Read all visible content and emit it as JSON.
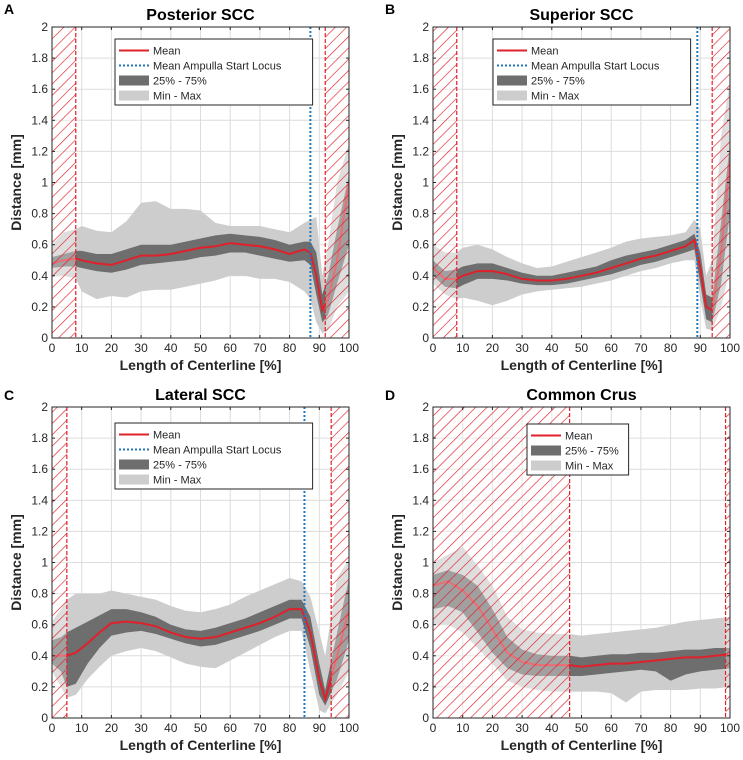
{
  "figure": {
    "x_label": "Length of Centerline [%]",
    "y_label": "Distance [mm]"
  },
  "colors": {
    "mean": "#e0202a",
    "ampulla": "#1f77c0",
    "iqr": "#6e6e6e",
    "minmax": "#cdcdcd",
    "hatch": "#e0202a",
    "grid": "#dcdcdc"
  },
  "chart_data": [
    {
      "panel": "A",
      "title": "Posterior SCC",
      "type": "line",
      "xlabel": "Length of Centerline [%]",
      "ylabel": "Distance [mm]",
      "xlim": [
        0,
        100
      ],
      "ylim": [
        0,
        2
      ],
      "xticks": [
        0,
        10,
        20,
        30,
        40,
        50,
        60,
        70,
        80,
        90,
        100
      ],
      "yticks": [
        0,
        0.2,
        0.4,
        0.6,
        0.8,
        1,
        1.2,
        1.4,
        1.6,
        1.8,
        2
      ],
      "ampulla_start": 87,
      "excluded_ranges": [
        [
          0,
          8
        ],
        [
          92,
          100
        ]
      ],
      "legend": [
        "Mean",
        "Mean Ampulla Start Locus",
        "25% - 75%",
        "Min - Max"
      ],
      "x": [
        0,
        4,
        8,
        10,
        15,
        20,
        25,
        30,
        35,
        40,
        45,
        50,
        55,
        60,
        65,
        70,
        75,
        80,
        85,
        87,
        89,
        91,
        93,
        96,
        100
      ],
      "mean": [
        0.48,
        0.5,
        0.51,
        0.5,
        0.48,
        0.47,
        0.5,
        0.53,
        0.53,
        0.54,
        0.56,
        0.58,
        0.59,
        0.61,
        0.6,
        0.59,
        0.57,
        0.54,
        0.57,
        0.55,
        0.4,
        0.18,
        0.25,
        0.5,
        1.0
      ],
      "q25": [
        0.45,
        0.46,
        0.46,
        0.45,
        0.43,
        0.42,
        0.44,
        0.47,
        0.48,
        0.49,
        0.5,
        0.52,
        0.53,
        0.55,
        0.55,
        0.53,
        0.51,
        0.49,
        0.5,
        0.47,
        0.28,
        0.1,
        0.15,
        0.35,
        0.6
      ],
      "q75": [
        0.52,
        0.54,
        0.56,
        0.56,
        0.54,
        0.54,
        0.57,
        0.6,
        0.6,
        0.6,
        0.62,
        0.64,
        0.66,
        0.67,
        0.66,
        0.65,
        0.63,
        0.6,
        0.62,
        0.62,
        0.55,
        0.28,
        0.4,
        0.7,
        1.05
      ],
      "min": [
        0.4,
        0.4,
        0.38,
        0.3,
        0.25,
        0.27,
        0.26,
        0.3,
        0.31,
        0.31,
        0.33,
        0.35,
        0.37,
        0.4,
        0.4,
        0.38,
        0.38,
        0.36,
        0.3,
        0.25,
        0.1,
        0.03,
        0.05,
        0.2,
        0.3
      ],
      "max": [
        0.6,
        0.68,
        0.7,
        0.72,
        0.69,
        0.68,
        0.75,
        0.87,
        0.88,
        0.83,
        0.83,
        0.82,
        0.74,
        0.72,
        0.72,
        0.72,
        0.7,
        0.68,
        0.74,
        0.76,
        0.78,
        0.4,
        0.6,
        1.0,
        1.25
      ]
    },
    {
      "panel": "B",
      "title": "Superior SCC",
      "type": "line",
      "xlabel": "Length of Centerline [%]",
      "ylabel": "Distance [mm]",
      "xlim": [
        0,
        100
      ],
      "ylim": [
        0,
        2
      ],
      "xticks": [
        0,
        10,
        20,
        30,
        40,
        50,
        60,
        70,
        80,
        90,
        100
      ],
      "yticks": [
        0,
        0.2,
        0.4,
        0.6,
        0.8,
        1,
        1.2,
        1.4,
        1.6,
        1.8,
        2
      ],
      "ampulla_start": 89,
      "excluded_ranges": [
        [
          0,
          8
        ],
        [
          94,
          100
        ]
      ],
      "legend": [
        "Mean",
        "Mean Ampulla Start Locus",
        "25% - 75%",
        "Min - Max"
      ],
      "x": [
        0,
        4,
        8,
        10,
        15,
        20,
        25,
        30,
        35,
        40,
        45,
        50,
        55,
        60,
        65,
        70,
        75,
        80,
        85,
        88,
        90,
        92,
        94,
        97,
        100
      ],
      "mean": [
        0.45,
        0.38,
        0.38,
        0.4,
        0.43,
        0.43,
        0.41,
        0.38,
        0.37,
        0.37,
        0.38,
        0.4,
        0.42,
        0.45,
        0.48,
        0.51,
        0.53,
        0.56,
        0.59,
        0.63,
        0.45,
        0.2,
        0.18,
        0.55,
        1.15
      ],
      "q25": [
        0.4,
        0.33,
        0.32,
        0.34,
        0.38,
        0.38,
        0.37,
        0.35,
        0.34,
        0.34,
        0.35,
        0.37,
        0.39,
        0.41,
        0.44,
        0.47,
        0.49,
        0.52,
        0.55,
        0.57,
        0.35,
        0.12,
        0.1,
        0.35,
        0.8
      ],
      "q75": [
        0.5,
        0.43,
        0.44,
        0.46,
        0.48,
        0.48,
        0.45,
        0.42,
        0.4,
        0.4,
        0.42,
        0.44,
        0.46,
        0.5,
        0.53,
        0.55,
        0.57,
        0.6,
        0.63,
        0.67,
        0.55,
        0.28,
        0.26,
        0.75,
        1.25
      ],
      "min": [
        0.35,
        0.28,
        0.25,
        0.26,
        0.24,
        0.21,
        0.24,
        0.28,
        0.3,
        0.31,
        0.32,
        0.33,
        0.35,
        0.37,
        0.4,
        0.43,
        0.45,
        0.48,
        0.5,
        0.5,
        0.25,
        0.06,
        0.05,
        0.2,
        0.45
      ],
      "max": [
        0.6,
        0.55,
        0.55,
        0.58,
        0.6,
        0.57,
        0.52,
        0.48,
        0.45,
        0.46,
        0.49,
        0.52,
        0.55,
        0.58,
        0.62,
        0.64,
        0.65,
        0.66,
        0.68,
        0.76,
        0.7,
        0.4,
        0.5,
        1.3,
        1.65
      ]
    },
    {
      "panel": "C",
      "title": "Lateral SCC",
      "type": "line",
      "xlabel": "Length of Centerline [%]",
      "ylabel": "Distance [mm]",
      "xlim": [
        0,
        100
      ],
      "ylim": [
        0,
        2
      ],
      "xticks": [
        0,
        10,
        20,
        30,
        40,
        50,
        60,
        70,
        80,
        90,
        100
      ],
      "yticks": [
        0,
        0.2,
        0.4,
        0.6,
        0.8,
        1,
        1.2,
        1.4,
        1.6,
        1.8,
        2
      ],
      "ampulla_start": 85,
      "excluded_ranges": [
        [
          0,
          5
        ],
        [
          94,
          100
        ]
      ],
      "legend": [
        "Mean",
        "Mean Ampulla Start Locus",
        "25% - 75%",
        "Min - Max"
      ],
      "x": [
        0,
        3,
        5,
        8,
        12,
        16,
        20,
        25,
        30,
        35,
        40,
        45,
        50,
        55,
        60,
        65,
        70,
        75,
        80,
        84,
        87,
        90,
        92,
        96,
        100
      ],
      "mean": [
        0.4,
        0.4,
        0.4,
        0.42,
        0.48,
        0.55,
        0.61,
        0.62,
        0.61,
        0.59,
        0.55,
        0.52,
        0.51,
        0.52,
        0.55,
        0.58,
        0.61,
        0.65,
        0.7,
        0.7,
        0.55,
        0.25,
        0.12,
        0.4,
        0.7
      ],
      "q25": [
        0.35,
        0.3,
        0.2,
        0.22,
        0.35,
        0.45,
        0.53,
        0.55,
        0.56,
        0.54,
        0.51,
        0.48,
        0.46,
        0.47,
        0.5,
        0.53,
        0.56,
        0.6,
        0.64,
        0.64,
        0.45,
        0.15,
        0.08,
        0.25,
        0.5
      ],
      "q75": [
        0.5,
        0.52,
        0.55,
        0.58,
        0.62,
        0.66,
        0.7,
        0.7,
        0.68,
        0.65,
        0.6,
        0.57,
        0.56,
        0.58,
        0.61,
        0.64,
        0.68,
        0.72,
        0.76,
        0.76,
        0.65,
        0.35,
        0.18,
        0.55,
        0.9
      ],
      "min": [
        0.3,
        0.2,
        0.13,
        0.15,
        0.25,
        0.33,
        0.4,
        0.43,
        0.45,
        0.43,
        0.39,
        0.35,
        0.33,
        0.32,
        0.37,
        0.42,
        0.47,
        0.52,
        0.56,
        0.56,
        0.3,
        0.05,
        0.03,
        0.15,
        0.3
      ],
      "max": [
        0.62,
        0.7,
        0.76,
        0.8,
        0.8,
        0.8,
        0.82,
        0.8,
        0.78,
        0.76,
        0.72,
        0.69,
        0.68,
        0.7,
        0.73,
        0.78,
        0.82,
        0.86,
        0.9,
        0.88,
        0.78,
        0.55,
        0.4,
        0.9,
        1.02
      ]
    },
    {
      "panel": "D",
      "title": "Common Crus",
      "type": "line",
      "xlabel": "Length of Centerline [%]",
      "ylabel": "Distance [mm]",
      "xlim": [
        0,
        100
      ],
      "ylim": [
        0,
        2
      ],
      "xticks": [
        0,
        10,
        20,
        30,
        40,
        50,
        60,
        70,
        80,
        90,
        100
      ],
      "yticks": [
        0,
        0.2,
        0.4,
        0.6,
        0.8,
        1,
        1.2,
        1.4,
        1.6,
        1.8,
        2
      ],
      "ampulla_start": null,
      "excluded_ranges": [
        [
          0,
          46
        ],
        [
          98.5,
          100
        ]
      ],
      "legend": [
        "Mean",
        "25% - 75%",
        "Min - Max"
      ],
      "x": [
        0,
        5,
        10,
        15,
        20,
        25,
        30,
        35,
        40,
        46,
        50,
        55,
        60,
        65,
        70,
        75,
        80,
        85,
        90,
        95,
        100
      ],
      "mean": [
        0.85,
        0.88,
        0.82,
        0.72,
        0.57,
        0.42,
        0.36,
        0.34,
        0.34,
        0.34,
        0.33,
        0.34,
        0.35,
        0.35,
        0.36,
        0.37,
        0.38,
        0.39,
        0.39,
        0.4,
        0.41
      ],
      "q25": [
        0.7,
        0.72,
        0.68,
        0.55,
        0.42,
        0.32,
        0.28,
        0.27,
        0.27,
        0.27,
        0.27,
        0.28,
        0.29,
        0.3,
        0.31,
        0.3,
        0.24,
        0.28,
        0.3,
        0.31,
        0.32
      ],
      "q75": [
        0.92,
        0.95,
        0.92,
        0.85,
        0.7,
        0.52,
        0.44,
        0.41,
        0.4,
        0.4,
        0.39,
        0.4,
        0.41,
        0.41,
        0.42,
        0.42,
        0.43,
        0.44,
        0.44,
        0.45,
        0.45
      ],
      "min": [
        0.6,
        0.6,
        0.55,
        0.45,
        0.35,
        0.24,
        0.2,
        0.18,
        0.17,
        0.17,
        0.17,
        0.17,
        0.16,
        0.1,
        0.17,
        0.18,
        0.18,
        0.18,
        0.19,
        0.19,
        0.2
      ],
      "max": [
        1.0,
        1.05,
        1.1,
        0.98,
        0.85,
        0.65,
        0.57,
        0.55,
        0.54,
        0.54,
        0.53,
        0.54,
        0.55,
        0.56,
        0.57,
        0.58,
        0.6,
        0.62,
        0.63,
        0.64,
        0.65
      ]
    }
  ]
}
